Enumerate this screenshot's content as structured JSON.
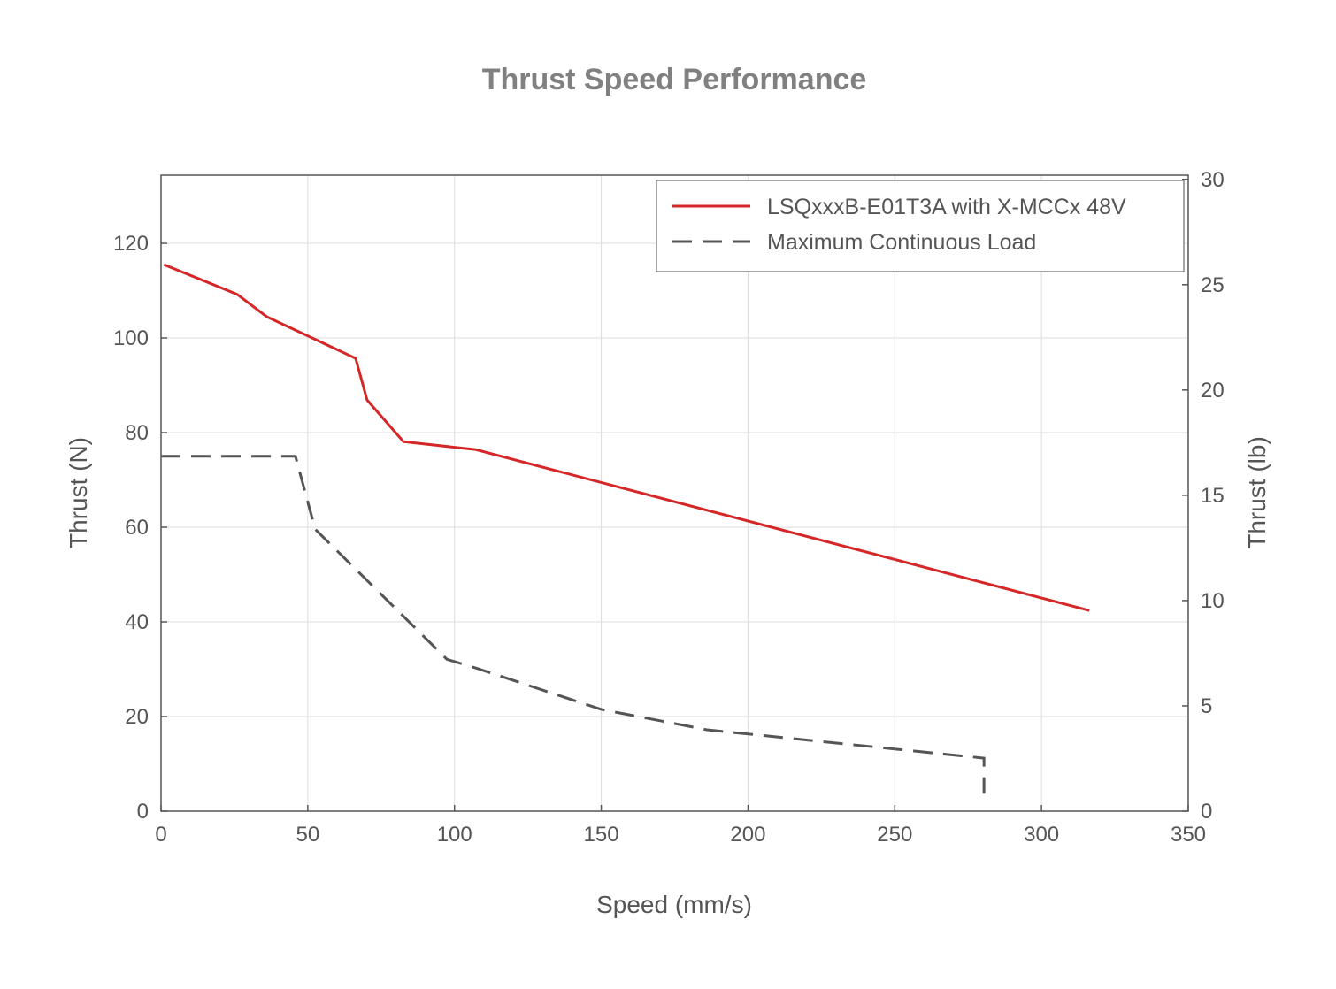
{
  "chart_data": {
    "type": "line",
    "title": "Thrust Speed Performance",
    "xlabel": "Speed (mm/s)",
    "ylabel": "Thrust (N)",
    "y2label": "Thrust (lb)",
    "xlim": [
      0,
      350
    ],
    "ylim": [
      0,
      134.4
    ],
    "y2lim": [
      0,
      30.2
    ],
    "xticks": [
      0,
      50,
      100,
      150,
      200,
      250,
      300,
      350
    ],
    "yticks": [
      0,
      20,
      40,
      60,
      80,
      100,
      120
    ],
    "y2ticks": [
      0,
      5,
      10,
      15,
      20,
      25,
      30
    ],
    "grid": true,
    "legend_position": "top-right",
    "series": [
      {
        "name": "LSQxxxB-E01T3A with X-MCCx 48V",
        "color": "#d62728",
        "style": "solid",
        "x": [
          1,
          26,
          36,
          66.3,
          70.2,
          82.6,
          107.3,
          316.3
        ],
        "y": [
          115.5,
          109.2,
          104.5,
          95.7,
          86.9,
          78.1,
          76.4,
          42.4
        ]
      },
      {
        "name": "Maximum Continuous Load",
        "color": "#555555",
        "style": "dashed",
        "x": [
          0,
          45.8,
          52.5,
          97.4,
          108,
          150,
          186,
          280.4,
          280.4
        ],
        "y": [
          75,
          75,
          59.6,
          32.1,
          30.1,
          21.5,
          17.2,
          11.2,
          3.7
        ]
      }
    ]
  }
}
